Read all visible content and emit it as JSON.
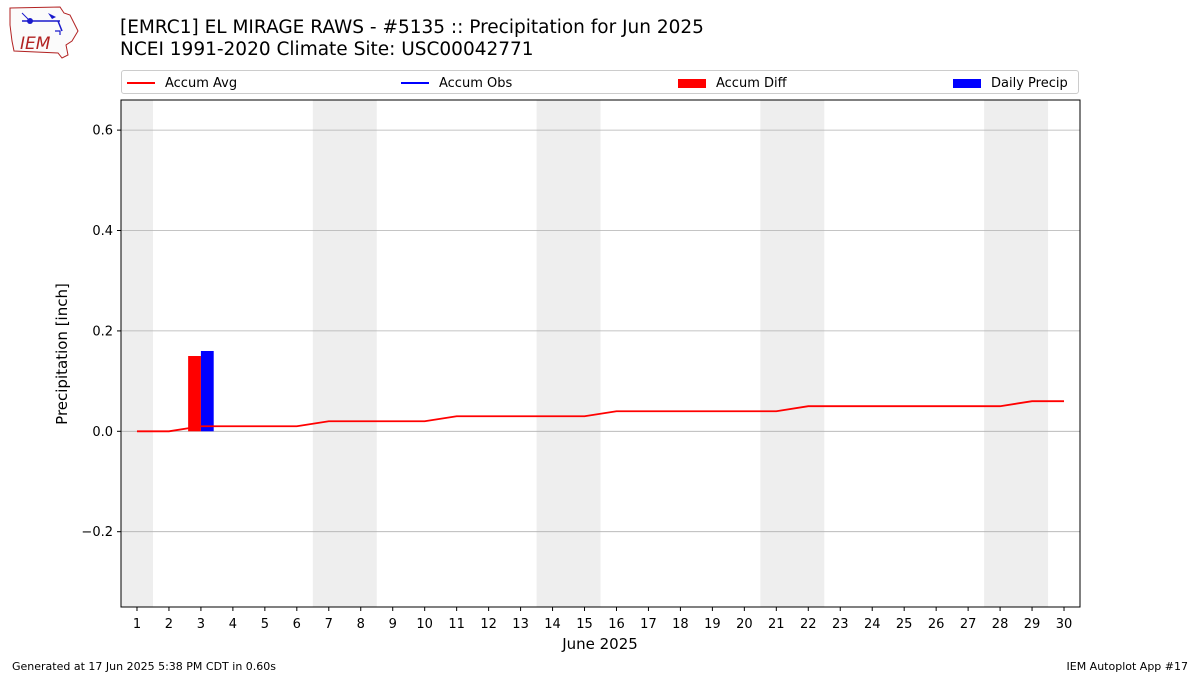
{
  "logo": {
    "text": "IEM"
  },
  "title": {
    "line1": "[EMRC1] EL MIRAGE RAWS - #5135 :: Precipitation for Jun 2025",
    "line2": "NCEI 1991-2020 Climate Site: USC00042771"
  },
  "footer": {
    "left": "Generated at 17 Jun 2025 5:38 PM CDT in 0.60s",
    "right": "IEM Autoplot App #17"
  },
  "colors": {
    "accum_avg": "#ff0000",
    "accum_obs": "#0000ff",
    "accum_diff": "#ff0000",
    "daily_precip": "#0000ff",
    "weekend_band": "#eeeeee",
    "grid": "#b0b0b0"
  },
  "chart_data": {
    "type": "line",
    "xlabel": "June 2025",
    "ylabel": "Precipitation [inch]",
    "x": [
      1,
      2,
      3,
      4,
      5,
      6,
      7,
      8,
      9,
      10,
      11,
      12,
      13,
      14,
      15,
      16,
      17,
      18,
      19,
      20,
      21,
      22,
      23,
      24,
      25,
      26,
      27,
      28,
      29,
      30
    ],
    "xticklabels": [
      "1",
      "2",
      "3",
      "4",
      "5",
      "6",
      "7",
      "8",
      "9",
      "10",
      "11",
      "12",
      "13",
      "14",
      "15",
      "16",
      "17",
      "18",
      "19",
      "20",
      "21",
      "22",
      "23",
      "24",
      "25",
      "26",
      "27",
      "28",
      "29",
      "30"
    ],
    "xlim": [
      0.5,
      30.5
    ],
    "ylim": [
      -0.35,
      0.66
    ],
    "yticks": [
      -0.2,
      0.0,
      0.2,
      0.4,
      0.6
    ],
    "yticklabels": [
      "−0.2",
      "0.0",
      "0.2",
      "0.4",
      "0.6"
    ],
    "grid": "horizontal",
    "legend_position": "top",
    "weekend_bands": [
      [
        0.5,
        1.5
      ],
      [
        6.5,
        8.5
      ],
      [
        13.5,
        15.5
      ],
      [
        20.5,
        22.5
      ],
      [
        27.5,
        29.5
      ]
    ],
    "series": [
      {
        "name": "Accum Avg",
        "type": "line",
        "x": [
          1,
          2,
          3,
          4,
          5,
          6,
          7,
          8,
          9,
          10,
          11,
          12,
          13,
          14,
          15,
          16,
          17,
          18,
          19,
          20,
          21,
          22,
          23,
          24,
          25,
          26,
          27,
          28,
          29,
          30
        ],
        "values": [
          0.0,
          0.0,
          0.01,
          0.01,
          0.01,
          0.01,
          0.02,
          0.02,
          0.02,
          0.02,
          0.03,
          0.03,
          0.03,
          0.03,
          0.03,
          0.04,
          0.04,
          0.04,
          0.04,
          0.04,
          0.04,
          0.05,
          0.05,
          0.05,
          0.05,
          0.05,
          0.05,
          0.05,
          0.06,
          0.06
        ]
      },
      {
        "name": "Accum Obs",
        "type": "line",
        "x": [],
        "values": []
      },
      {
        "name": "Accum Diff",
        "type": "bar",
        "x": [
          3
        ],
        "values": [
          0.15
        ]
      },
      {
        "name": "Daily Precip",
        "type": "bar",
        "x": [
          3
        ],
        "values": [
          0.16
        ]
      }
    ]
  }
}
